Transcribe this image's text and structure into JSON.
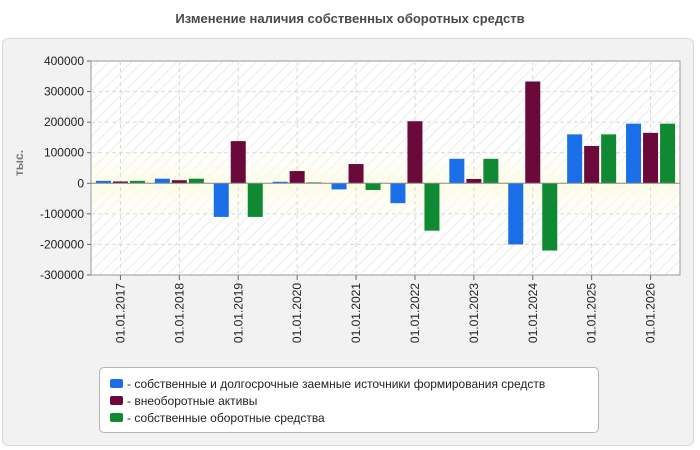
{
  "chart_data": {
    "type": "bar",
    "title": "Изменение наличия собственных оборотных средств",
    "ylabel": "тыс.",
    "xlabel": "",
    "ylim": [
      -300000,
      400000
    ],
    "yticks": [
      400000,
      300000,
      200000,
      100000,
      0,
      -100000,
      -200000,
      -300000
    ],
    "grid": true,
    "legend_position": "bottom",
    "categories": [
      "01.01.2017",
      "01.01.2018",
      "01.01.2019",
      "01.01.2020",
      "01.01.2021",
      "01.01.2022",
      "01.01.2023",
      "01.01.2024",
      "01.01.2025",
      "01.01.2026"
    ],
    "series": [
      {
        "name": "- собственные и долгосрочные заемные источники формирования средств",
        "color": "#1a6fe8",
        "values": [
          8000,
          15000,
          -110000,
          5000,
          -20000,
          -65000,
          80000,
          -200000,
          160000,
          195000
        ]
      },
      {
        "name": "- внеоборотные активы",
        "color": "#6b0a3a",
        "values": [
          6000,
          10000,
          138000,
          40000,
          63000,
          203000,
          14000,
          333000,
          122000,
          165000
        ]
      },
      {
        "name": "- собственные оборотные средства",
        "color": "#0f8a32",
        "values": [
          8000,
          15000,
          -110000,
          3000,
          -22000,
          -155000,
          80000,
          -220000,
          160000,
          195000
        ]
      }
    ]
  }
}
